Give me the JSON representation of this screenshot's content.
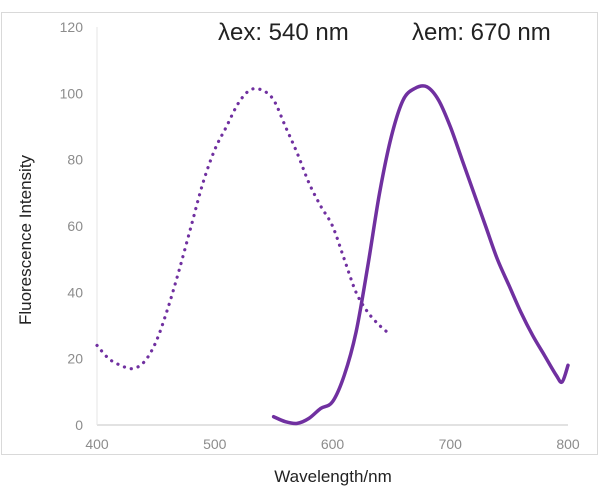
{
  "chart_data": {
    "type": "line",
    "title": "",
    "xlabel": "Wavelength/nm",
    "ylabel": "Fluorescence Intensity",
    "xlim": [
      400,
      800
    ],
    "ylim": [
      0,
      120
    ],
    "xticks": [
      400,
      500,
      600,
      700,
      800
    ],
    "yticks": [
      0,
      20,
      40,
      60,
      80,
      100,
      120
    ],
    "grid": false,
    "annotations": [
      "λex: 540 nm",
      "λem: 670 nm"
    ],
    "color": "#7030a0",
    "series": [
      {
        "style": "dotted",
        "x": [
          400,
          410,
          420,
          430,
          440,
          450,
          460,
          470,
          480,
          490,
          500,
          510,
          520,
          530,
          540,
          550,
          560,
          570,
          580,
          590,
          600,
          610,
          620,
          630,
          640,
          650
        ],
        "y": [
          24,
          20,
          18,
          17,
          19,
          25,
          35,
          47,
          60,
          73,
          83,
          90,
          97,
          101,
          101,
          98,
          90,
          82,
          73,
          66,
          60,
          50,
          40,
          34,
          30,
          27
        ]
      },
      {
        "style": "solid",
        "x": [
          550,
          560,
          570,
          580,
          590,
          600,
          610,
          620,
          630,
          640,
          650,
          660,
          670,
          680,
          690,
          700,
          710,
          720,
          730,
          740,
          750,
          760,
          770,
          780,
          790,
          795,
          800
        ],
        "y": [
          2.5,
          1,
          0.5,
          2,
          5,
          7,
          15,
          28,
          48,
          70,
          87,
          98,
          101.5,
          102,
          98,
          90,
          80,
          70,
          60,
          50,
          42,
          34,
          27,
          21,
          15,
          13,
          18
        ]
      }
    ]
  }
}
